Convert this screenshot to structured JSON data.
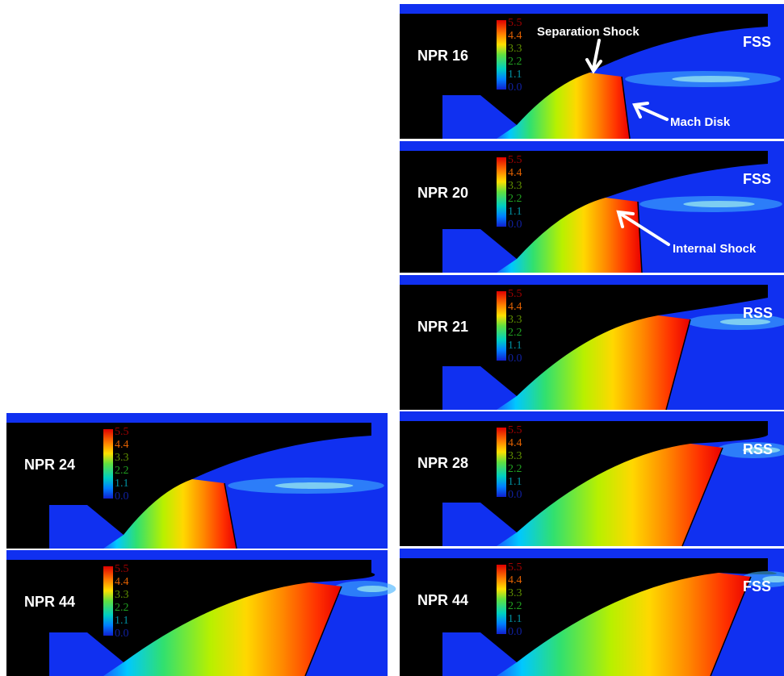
{
  "colorbar_ticks": [
    "5.5",
    "4.4",
    "3.3",
    "2.2",
    "1.1",
    "0.0"
  ],
  "panels": [
    {
      "label": "NPR 16",
      "regime": "FSS"
    },
    {
      "label": "NPR 20",
      "regime": "FSS"
    },
    {
      "label": "NPR 21",
      "regime": "RSS"
    },
    {
      "label": "NPR 28",
      "regime": "RSS"
    },
    {
      "label": "NPR 44",
      "regime": "FSS"
    },
    {
      "label": "NPR 24"
    },
    {
      "label": "NPR 44"
    }
  ],
  "annotations": [
    {
      "text": "Separation Shock"
    },
    {
      "text": "Mach Disk"
    },
    {
      "text": "Internal Shock"
    }
  ]
}
